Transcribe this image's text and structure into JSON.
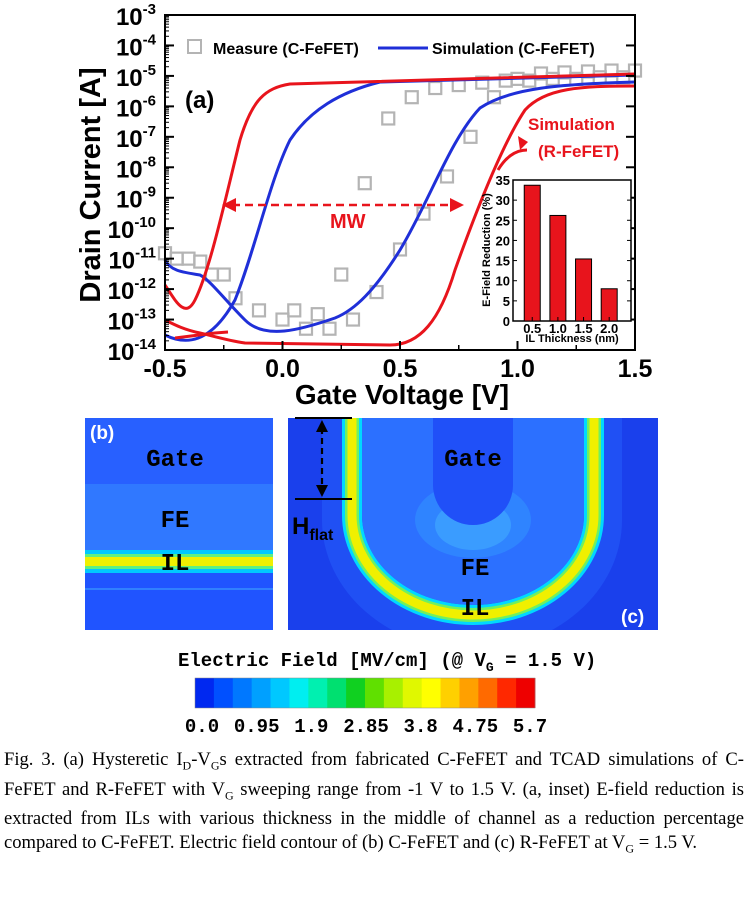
{
  "panel_a": {
    "label": "(a)",
    "ylabel": "Drain Current [A]",
    "xlabel": "Gate Voltage [V]",
    "x_ticks": [
      "-0.5",
      "0.0",
      "0.5",
      "1.0",
      "1.5"
    ],
    "y_ticks": [
      {
        "base": "10",
        "exp": "-3"
      },
      {
        "base": "10",
        "exp": "-4"
      },
      {
        "base": "10",
        "exp": "-5"
      },
      {
        "base": "10",
        "exp": "-6"
      },
      {
        "base": "10",
        "exp": "-7"
      },
      {
        "base": "10",
        "exp": "-8"
      },
      {
        "base": "10",
        "exp": "-9"
      },
      {
        "base": "10",
        "exp": "-10"
      },
      {
        "base": "10",
        "exp": "-11"
      },
      {
        "base": "10",
        "exp": "-12"
      },
      {
        "base": "10",
        "exp": "-13"
      },
      {
        "base": "10",
        "exp": "-14"
      }
    ],
    "legend_measure": "Measure (C-FeFET)",
    "legend_simulation": "Simulation (C-FeFET)",
    "annot_sim_r_1": "Simulation",
    "annot_sim_r_2": "(R-FeFET)",
    "annot_mw": "MW",
    "colors": {
      "measure": "#b4b4b4",
      "sim_c": "#1f2fd8",
      "sim_r": "#e8141c"
    }
  },
  "inset": {
    "ylabel": "E-Field Reduction (%)",
    "xlabel": "IL Thickness (nm)",
    "y_ticks": [
      "0",
      "5",
      "10",
      "15",
      "20",
      "25",
      "30",
      "35"
    ],
    "x_ticks": [
      "0.5",
      "1.0",
      "1.5",
      "2.0"
    ]
  },
  "chart_data": [
    {
      "type": "line",
      "title": "",
      "xlabel": "Gate Voltage [V]",
      "ylabel": "Drain Current [A]",
      "xlim": [
        -0.5,
        1.5
      ],
      "ylim": [
        1e-14,
        0.001
      ],
      "y_scale": "log",
      "legend": "top",
      "series": [
        {
          "name": "Measure (C-FeFET)",
          "marker": "square",
          "x": [
            -0.5,
            -0.4,
            -0.3,
            -0.2,
            -0.1,
            0.0,
            0.1,
            0.2,
            0.3,
            0.4,
            0.5,
            0.6,
            0.7,
            0.8,
            0.9,
            1.0,
            1.1,
            1.2,
            1.3,
            1.4,
            1.5
          ],
          "y": [
            1.5e-11,
            1e-11,
            3e-12,
            5e-13,
            2e-13,
            1e-13,
            5e-14,
            5e-14,
            1e-13,
            8e-13,
            2e-11,
            3e-10,
            5e-09,
            1e-07,
            2e-06,
            8e-06,
            1.2e-05,
            1.3e-05,
            1.4e-05,
            1.5e-05,
            1.5e-05
          ]
        },
        {
          "name": "Simulation (C-FeFET)",
          "x": [
            -0.5,
            -0.4,
            -0.3,
            -0.2,
            -0.1,
            0.0,
            0.1,
            0.2,
            0.3,
            0.4,
            0.5,
            0.6,
            0.7,
            0.8,
            0.9,
            1.0,
            1.1,
            1.2,
            1.3,
            1.4,
            1.5
          ],
          "y": [
            2e-14,
            2e-14,
            3e-14,
            8e-13,
            3e-11,
            1e-09,
            5e-08,
            1e-06,
            1e-05,
            1.5e-05,
            1.7e-05,
            1.8e-05,
            1.9e-05,
            2e-05,
            2e-05,
            2.1e-05,
            2.1e-05,
            2.2e-05,
            2.2e-05,
            2.3e-05,
            2.3e-05
          ]
        },
        {
          "name": "Simulation (R-FeFET)",
          "x": [
            -0.5,
            -0.4,
            -0.3,
            -0.2,
            -0.1,
            0.0,
            0.1,
            0.2,
            0.3,
            0.4,
            0.5,
            0.6,
            0.7,
            0.8,
            0.9,
            1.0,
            1.1,
            1.2,
            1.3,
            1.4,
            1.5
          ],
          "y": [
            1e-12,
            2e-13,
            1e-10,
            1e-07,
            5e-06,
            1.2e-05,
            1.3e-05,
            1.5e-05,
            1.5e-05,
            1.6e-05,
            1.7e-05,
            1.8e-05,
            1.8e-05,
            1.9e-05,
            2e-05,
            2e-05,
            2.1e-05,
            2.1e-05,
            2.2e-05,
            2.2e-05,
            2.3e-05
          ]
        }
      ]
    },
    {
      "type": "bar",
      "title": "",
      "xlabel": "IL Thickness (nm)",
      "ylabel": "E-Field Reduction (%)",
      "categories": [
        "0.5",
        "1.0",
        "1.5",
        "2.0"
      ],
      "values": [
        33.7,
        26.2,
        15.4,
        8.0
      ],
      "ylim": [
        0,
        35
      ]
    }
  ],
  "panel_b": {
    "label": "(b)",
    "gate": "Gate",
    "fe": "FE",
    "il": "IL"
  },
  "panel_c": {
    "label": "(c)",
    "gate": "Gate",
    "fe": "FE",
    "il": "IL",
    "h_main": "H",
    "h_sub": "flat"
  },
  "colorbar": {
    "title_pre": "Electric Field [MV/cm] (@ V",
    "title_sub": "G",
    "title_post": " = 1.5 V)",
    "ticks": [
      "0.0",
      "0.95",
      "1.9",
      "2.85",
      "3.8",
      "4.75",
      "5.7"
    ],
    "colors": [
      "#0028f0",
      "#0050ff",
      "#0078ff",
      "#00a0ff",
      "#00c8ff",
      "#00eef0",
      "#00f0b0",
      "#00e070",
      "#10d020",
      "#60e000",
      "#a8f000",
      "#e0f800",
      "#ffff00",
      "#ffd000",
      "#ffa000",
      "#ff6a00",
      "#ff2800",
      "#ee0000"
    ]
  },
  "caption": {
    "p1": "Fig. 3. (a) Hysteretic I",
    "s1": "D",
    "p2": "-V",
    "s2": "G",
    "p3": "s extracted from fabricated C-FeFET and TCAD simulations of C-FeFET and R-FeFET with V",
    "s3": "G",
    "p4": " sweeping range from -1 V to 1.5 V. (a, inset) E-field reduction is extracted from ILs with various thickness in the middle of channel as a reduction percentage compared to C-FeFET. Electric field contour of (b) C-FeFET and (c) R-FeFET at V",
    "s4": "G",
    "p5": " = 1.5 V."
  }
}
